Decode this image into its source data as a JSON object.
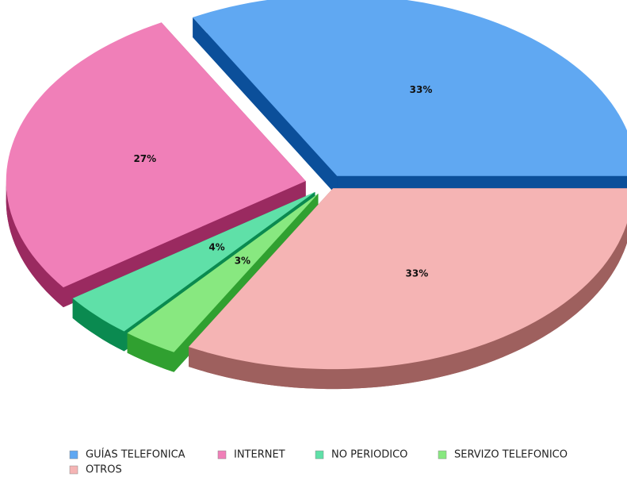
{
  "chart_data": {
    "type": "pie3d",
    "categories": [
      "GUÍAS TELEFONICA",
      "INTERNET",
      "NO PERIODICO",
      "SERVIZO TELEFONICO",
      "OTROS"
    ],
    "values": [
      33,
      27,
      4,
      3,
      33
    ],
    "value_labels": [
      "33%",
      "27%",
      "4%",
      "3%",
      "33%"
    ],
    "colors": [
      "#60a8f2",
      "#f07fb8",
      "#5fe0a8",
      "#88e880",
      "#f5b4b4"
    ],
    "side_colors": [
      "#0b4f9a",
      "#9a2a60",
      "#0a8a50",
      "#30a030",
      "#9e605e"
    ],
    "legend": "bottom"
  }
}
